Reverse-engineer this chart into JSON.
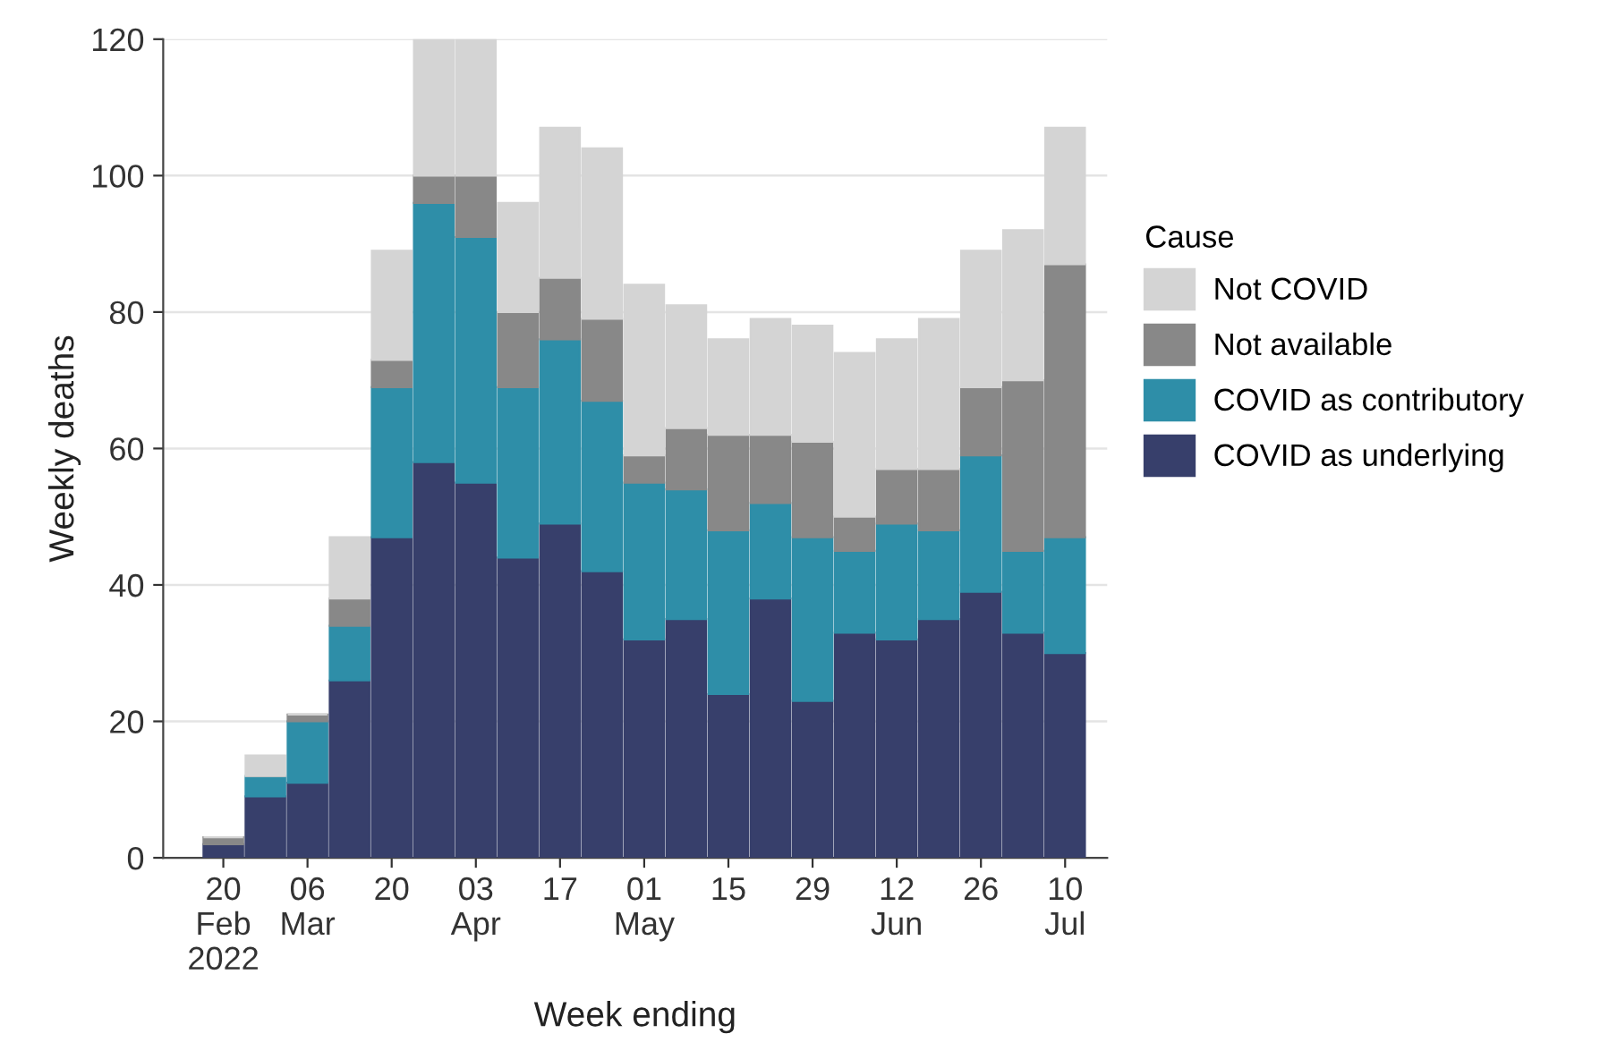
{
  "chart_data": {
    "type": "bar",
    "stacked": true,
    "xlabel": "Week ending",
    "ylabel": "Weekly deaths",
    "legend_title": "Cause",
    "x": [
      "2022-02-20",
      "2022-02-27",
      "2022-03-06",
      "2022-03-13",
      "2022-03-20",
      "2022-03-27",
      "2022-04-03",
      "2022-04-10",
      "2022-04-17",
      "2022-04-24",
      "2022-05-01",
      "2022-05-08",
      "2022-05-15",
      "2022-05-22",
      "2022-05-29",
      "2022-06-05",
      "2022-06-12",
      "2022-06-19",
      "2022-06-26",
      "2022-07-03",
      "2022-07-10"
    ],
    "series": [
      {
        "name": "COVID as underlying",
        "color": "#373f6b",
        "values": [
          2,
          9,
          11,
          26,
          47,
          58,
          55,
          44,
          49,
          42,
          32,
          35,
          24,
          38,
          23,
          33,
          32,
          35,
          39,
          33,
          30
        ]
      },
      {
        "name": "COVID as contributory",
        "color": "#2e8ea8",
        "values": [
          0,
          3,
          9,
          8,
          22,
          38,
          36,
          25,
          27,
          25,
          23,
          19,
          24,
          14,
          24,
          12,
          17,
          13,
          20,
          12,
          17
        ]
      },
      {
        "name": "Not available",
        "color": "#888888",
        "values": [
          1,
          0,
          1,
          4,
          4,
          4,
          9,
          11,
          9,
          12,
          4,
          9,
          14,
          10,
          14,
          5,
          8,
          9,
          10,
          25,
          40
        ]
      },
      {
        "name": "Not COVID",
        "color": "#d4d4d4",
        "values": [
          0,
          3,
          0,
          9,
          16,
          20,
          20,
          16,
          22,
          25,
          25,
          18,
          14,
          17,
          17,
          24,
          19,
          22,
          20,
          22,
          20
        ]
      }
    ],
    "xlim": [
      "2022-02-10",
      "2022-07-17"
    ],
    "xticks": [
      {
        "value": "2022-02-20",
        "label": "20\nFeb\n2022"
      },
      {
        "value": "2022-03-06",
        "label": "06\nMar"
      },
      {
        "value": "2022-03-20",
        "label": "20"
      },
      {
        "value": "2022-04-03",
        "label": "03\nApr"
      },
      {
        "value": "2022-04-17",
        "label": "17"
      },
      {
        "value": "2022-05-01",
        "label": "01\nMay"
      },
      {
        "value": "2022-05-15",
        "label": "15"
      },
      {
        "value": "2022-05-29",
        "label": "29"
      },
      {
        "value": "2022-06-12",
        "label": "12\nJun"
      },
      {
        "value": "2022-06-26",
        "label": "26"
      },
      {
        "value": "2022-07-10",
        "label": "10\nJul"
      }
    ],
    "ylim": [
      0,
      120
    ],
    "yticks": [
      0,
      20,
      40,
      60,
      80,
      100,
      120
    ],
    "grid": "y",
    "legend": "right"
  }
}
